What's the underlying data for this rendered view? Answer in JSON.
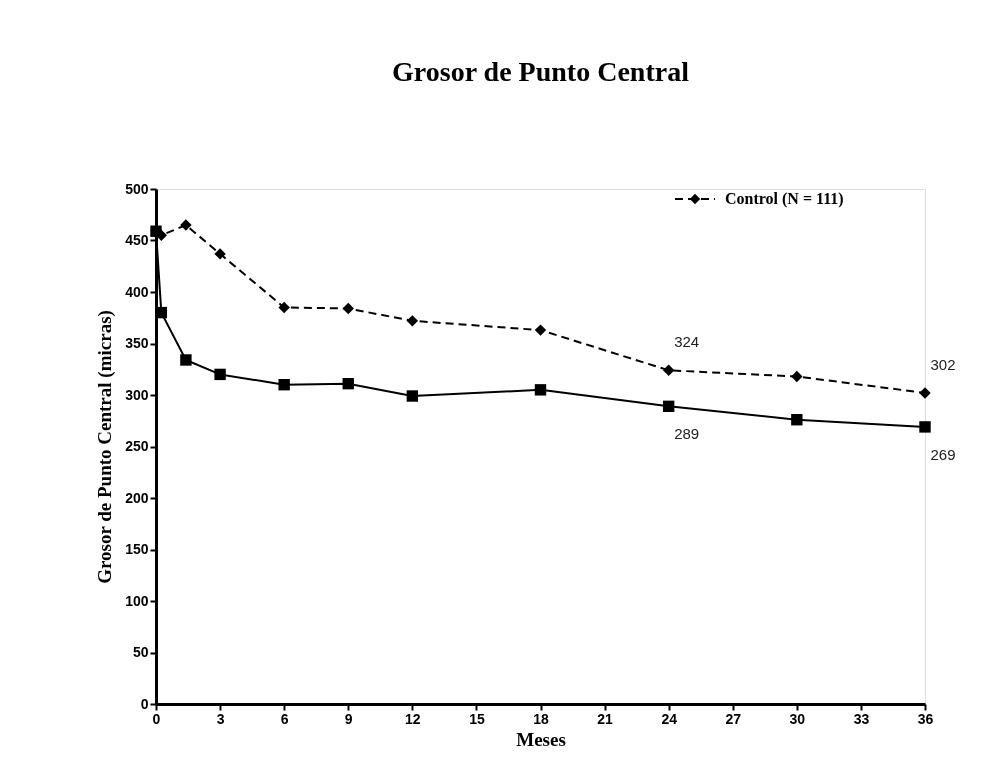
{
  "chart_data": {
    "type": "line",
    "title": "Grosor de Punto Central",
    "xlabel": "Meses",
    "ylabel": "Grosor de  Punto Central (micras)",
    "xlim": [
      0,
      36
    ],
    "xticks": [
      0,
      3,
      6,
      9,
      12,
      15,
      18,
      21,
      24,
      27,
      30,
      33,
      36
    ],
    "ylim": [
      0,
      500
    ],
    "yticks": [
      0,
      50,
      100,
      150,
      200,
      250,
      300,
      350,
      400,
      450,
      500
    ],
    "grid": false,
    "legend": "top right",
    "series": [
      {
        "name": "Control (N = 111)",
        "color": "#000000",
        "marker": "diamond",
        "line_style": "dashed",
        "x": [
          0,
          0.25,
          1.4,
          3,
          6,
          9,
          12,
          18,
          24,
          30,
          36
        ],
        "values": [
          460,
          455,
          465,
          437,
          385,
          384,
          372,
          363,
          324,
          318,
          302
        ],
        "value_labels": [
          null,
          null,
          null,
          null,
          null,
          null,
          null,
          null,
          "324",
          null,
          "302"
        ]
      },
      {
        "color": "#000000",
        "marker": "square",
        "line_style": "solid",
        "x": [
          0,
          0.25,
          1.4,
          3,
          6,
          9,
          12,
          18,
          24,
          30,
          36
        ],
        "values": [
          459,
          380,
          334,
          320,
          310,
          311,
          299,
          305,
          289,
          276,
          269
        ],
        "value_labels": [
          null,
          null,
          null,
          null,
          null,
          null,
          null,
          null,
          "289",
          null,
          "269"
        ]
      }
    ]
  }
}
